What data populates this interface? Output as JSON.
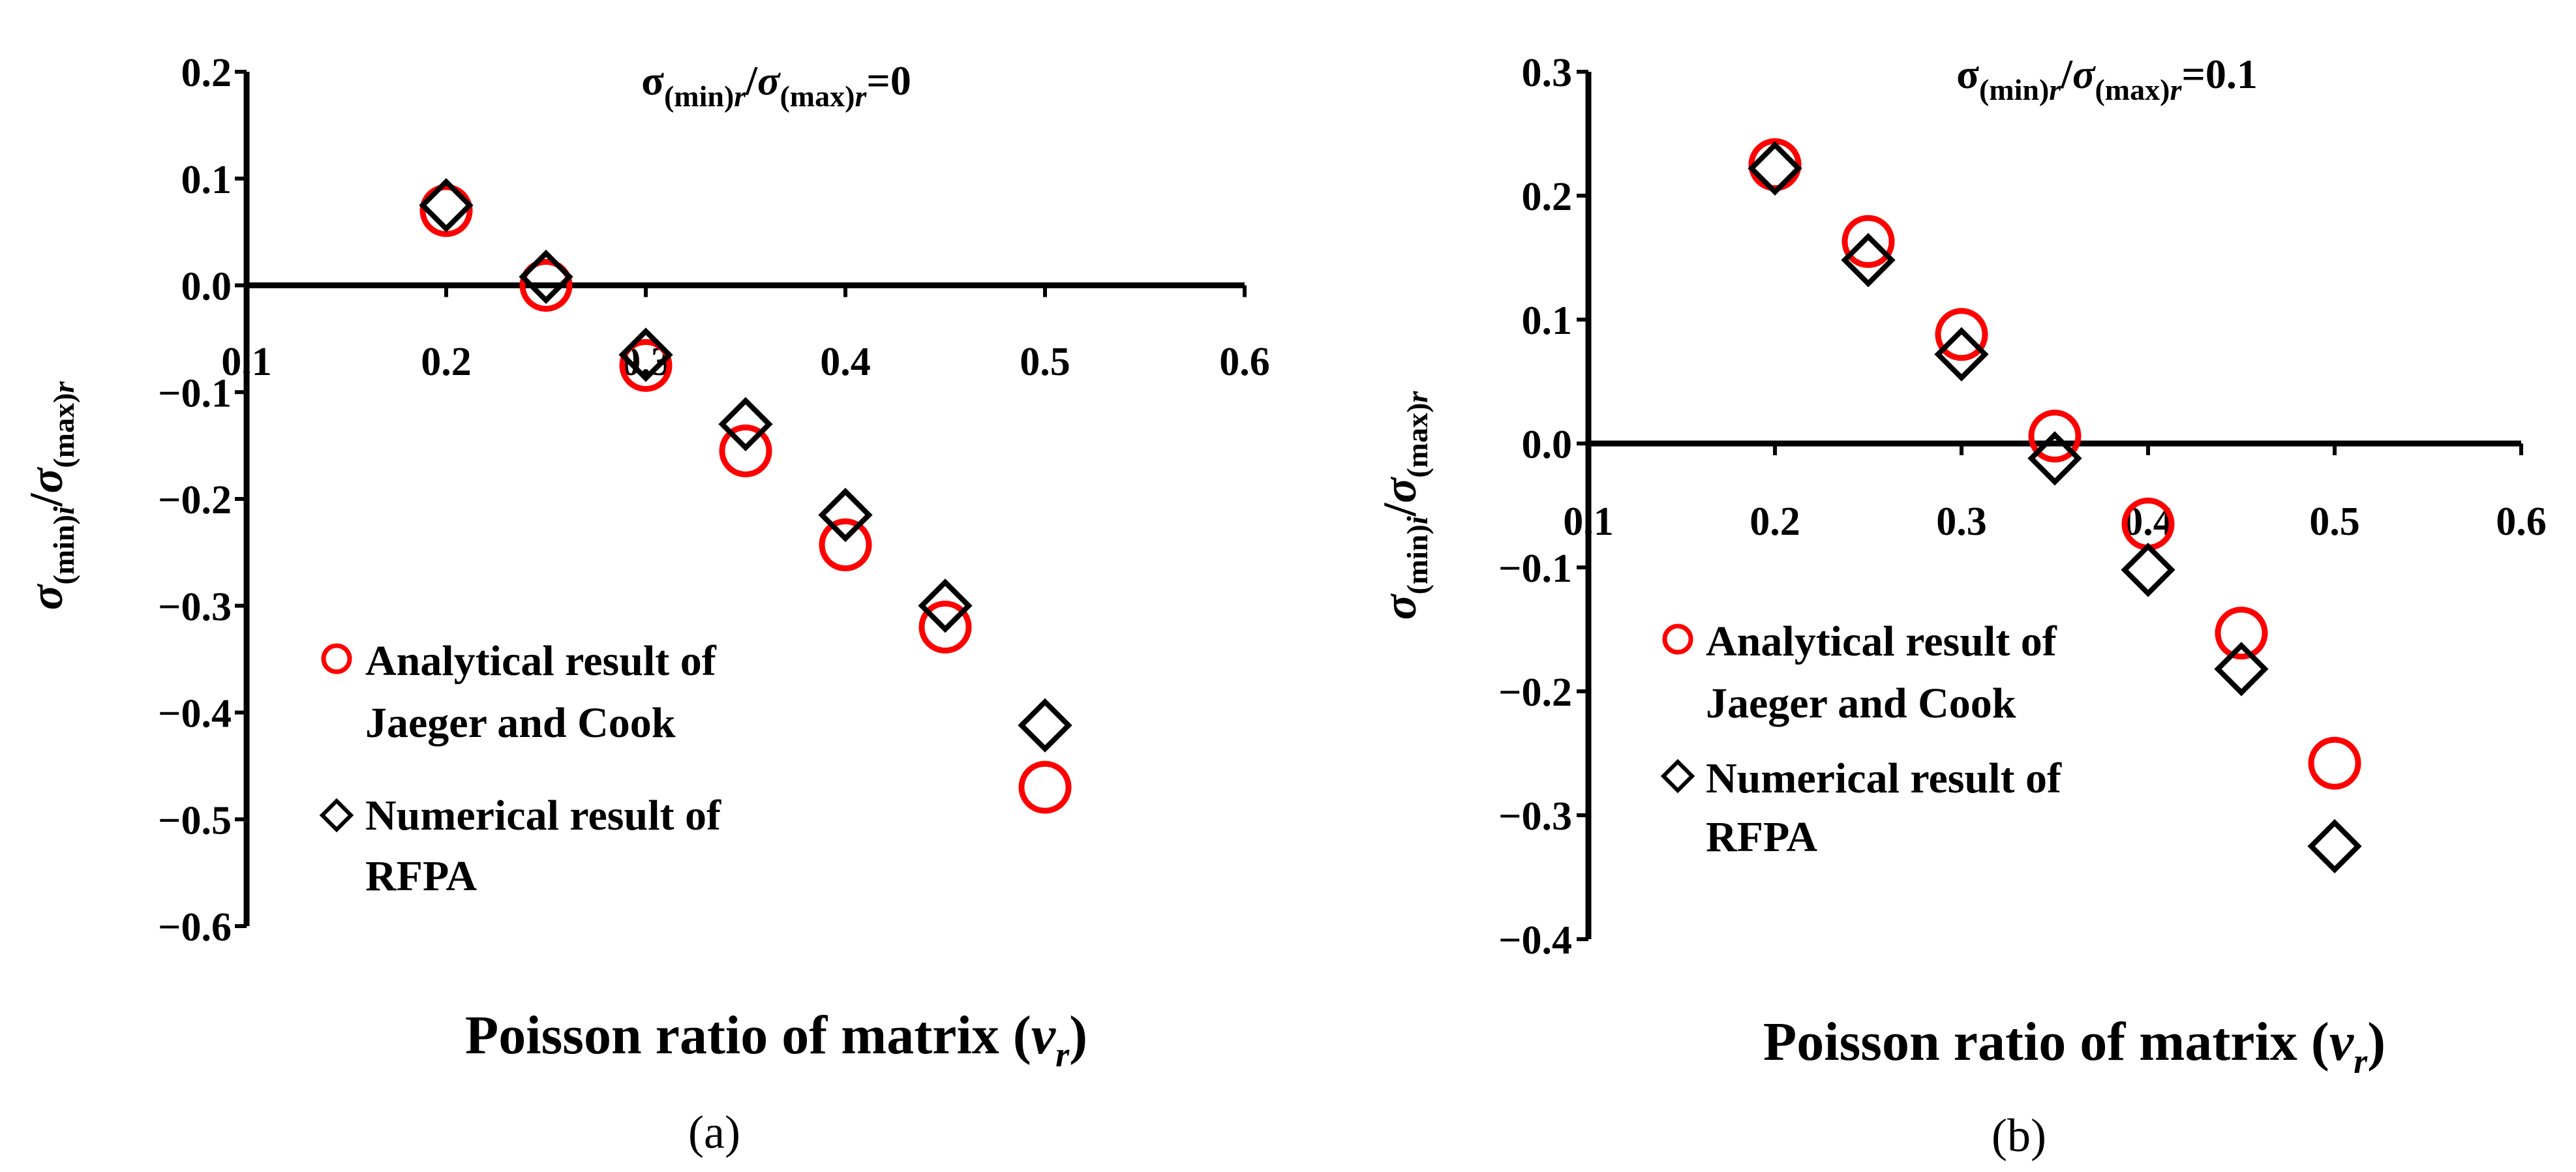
{
  "chart_data": [
    {
      "type": "scatter",
      "panel_label": "(a)",
      "title": {
        "prefix": "σ",
        "sub1": "(min)",
        "sub1_var": "r",
        "slash": "/",
        "mid": "σ",
        "sub2": "(max)",
        "sub2_var": "r",
        "suffix": "=0"
      },
      "xlabel": {
        "main": "Poisson ratio of matrix (",
        "var": "v",
        "var_sub": "r",
        "close": ")"
      },
      "ylabel": {
        "a": "σ",
        "sub1": "(min)",
        "sub1_var": "i",
        "slash": "/",
        "b": "σ",
        "sub2": "(max)",
        "sub2_var": "r"
      },
      "xlim": [
        0.1,
        0.6
      ],
      "ylim": [
        -0.6,
        0.2
      ],
      "x_ticks": [
        0.1,
        0.2,
        0.3,
        0.4,
        0.5,
        0.6
      ],
      "x_tick_labels": [
        "0.1",
        "0.2",
        "0.3",
        "0.4",
        "0.5",
        "0.6"
      ],
      "y_ticks": [
        0.2,
        0.1,
        0.0,
        -0.1,
        -0.2,
        -0.3,
        -0.4,
        -0.5,
        -0.6
      ],
      "y_tick_labels": [
        "0.2",
        "0.1",
        "0.0",
        "−0.1",
        "−0.2",
        "−0.3",
        "−0.4",
        "−0.5",
        "−0.6"
      ],
      "series": [
        {
          "name": "Analytical result of Jaeger and Cook",
          "legend_lines": [
            "Analytical result of",
            "Jaeger and Cook"
          ],
          "marker": "circle",
          "color": "#ff0000",
          "x": [
            0.2,
            0.25,
            0.3,
            0.35,
            0.4,
            0.45,
            0.5
          ],
          "y": [
            0.07,
            0.0,
            -0.075,
            -0.155,
            -0.243,
            -0.32,
            -0.47
          ]
        },
        {
          "name": "Numerical result of RFPA",
          "legend_lines": [
            "Numerical result of",
            "RFPA"
          ],
          "marker": "diamond",
          "color": "#000000",
          "x": [
            0.2,
            0.25,
            0.3,
            0.35,
            0.4,
            0.45,
            0.5
          ],
          "y": [
            0.075,
            0.008,
            -0.065,
            -0.13,
            -0.215,
            -0.3,
            -0.412
          ]
        }
      ]
    },
    {
      "type": "scatter",
      "panel_label": "(b)",
      "title": {
        "prefix": "σ",
        "sub1": "(min)",
        "sub1_var": "r",
        "slash": "/",
        "mid": "σ",
        "sub2": "(max)",
        "sub2_var": "r",
        "suffix": "=0.1"
      },
      "xlabel": {
        "main": "Poisson ratio of matrix (",
        "var": "v",
        "var_sub": "r",
        "close": ")"
      },
      "ylabel": {
        "a": "σ",
        "sub1": "(min)",
        "sub1_var": "i",
        "slash": "/",
        "b": "σ",
        "sub2": "(max)",
        "sub2_var": "r"
      },
      "xlim": [
        0.1,
        0.6
      ],
      "ylim": [
        -0.4,
        0.3
      ],
      "x_ticks": [
        0.1,
        0.2,
        0.3,
        0.4,
        0.5,
        0.6
      ],
      "x_tick_labels": [
        "0.1",
        "0.2",
        "0.3",
        "0.4",
        "0.5",
        "0.6"
      ],
      "y_ticks": [
        0.3,
        0.2,
        0.1,
        0.0,
        -0.1,
        -0.2,
        -0.3,
        -0.4
      ],
      "y_tick_labels": [
        "0.3",
        "0.2",
        "0.1",
        "0.0",
        "−0.1",
        "−0.2",
        "−0.3",
        "−0.4"
      ],
      "series": [
        {
          "name": "Analytical result of Jaeger and Cook",
          "legend_lines": [
            "Analytical result of",
            "Jaeger and Cook"
          ],
          "marker": "circle",
          "color": "#ff0000",
          "x": [
            0.2,
            0.25,
            0.3,
            0.35,
            0.4,
            0.45,
            0.5
          ],
          "y": [
            0.225,
            0.163,
            0.088,
            0.006,
            -0.065,
            -0.153,
            -0.258
          ]
        },
        {
          "name": "Numerical result of RFPA",
          "legend_lines": [
            "Numerical result of",
            "RFPA"
          ],
          "marker": "diamond",
          "color": "#000000",
          "x": [
            0.2,
            0.25,
            0.3,
            0.35,
            0.4,
            0.45,
            0.5
          ],
          "y": [
            0.222,
            0.148,
            0.072,
            -0.012,
            -0.102,
            -0.182,
            -0.325
          ]
        }
      ]
    }
  ]
}
